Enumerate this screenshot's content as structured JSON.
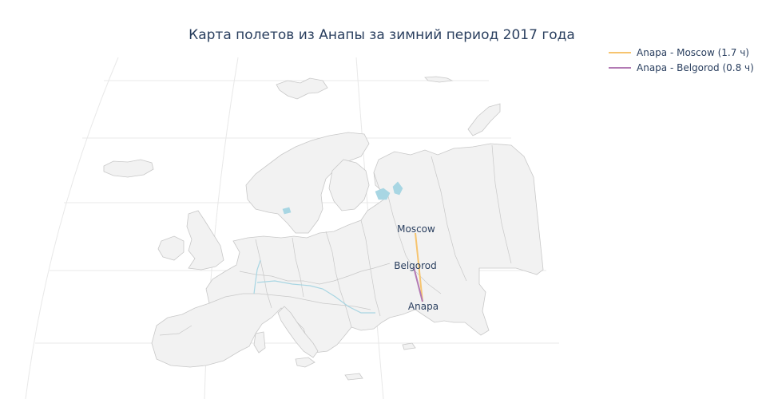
{
  "title": "Карта полетов из Анапы за зимний период 2017 года",
  "legend": [
    {
      "label": "Anapa - Moscow (1.7 ч)",
      "color": "#f6c46f"
    },
    {
      "label": "Anapa - Belgorod (0.8 ч)",
      "color": "#b27ab4"
    }
  ],
  "cities": [
    {
      "name": "Moscow"
    },
    {
      "name": "Belgorod"
    },
    {
      "name": "Anapa"
    }
  ],
  "colors": {
    "land": "#f2f2f2",
    "border": "#c8c8c8",
    "water": "#a8d6e3",
    "grid": "#e8e8e8"
  }
}
